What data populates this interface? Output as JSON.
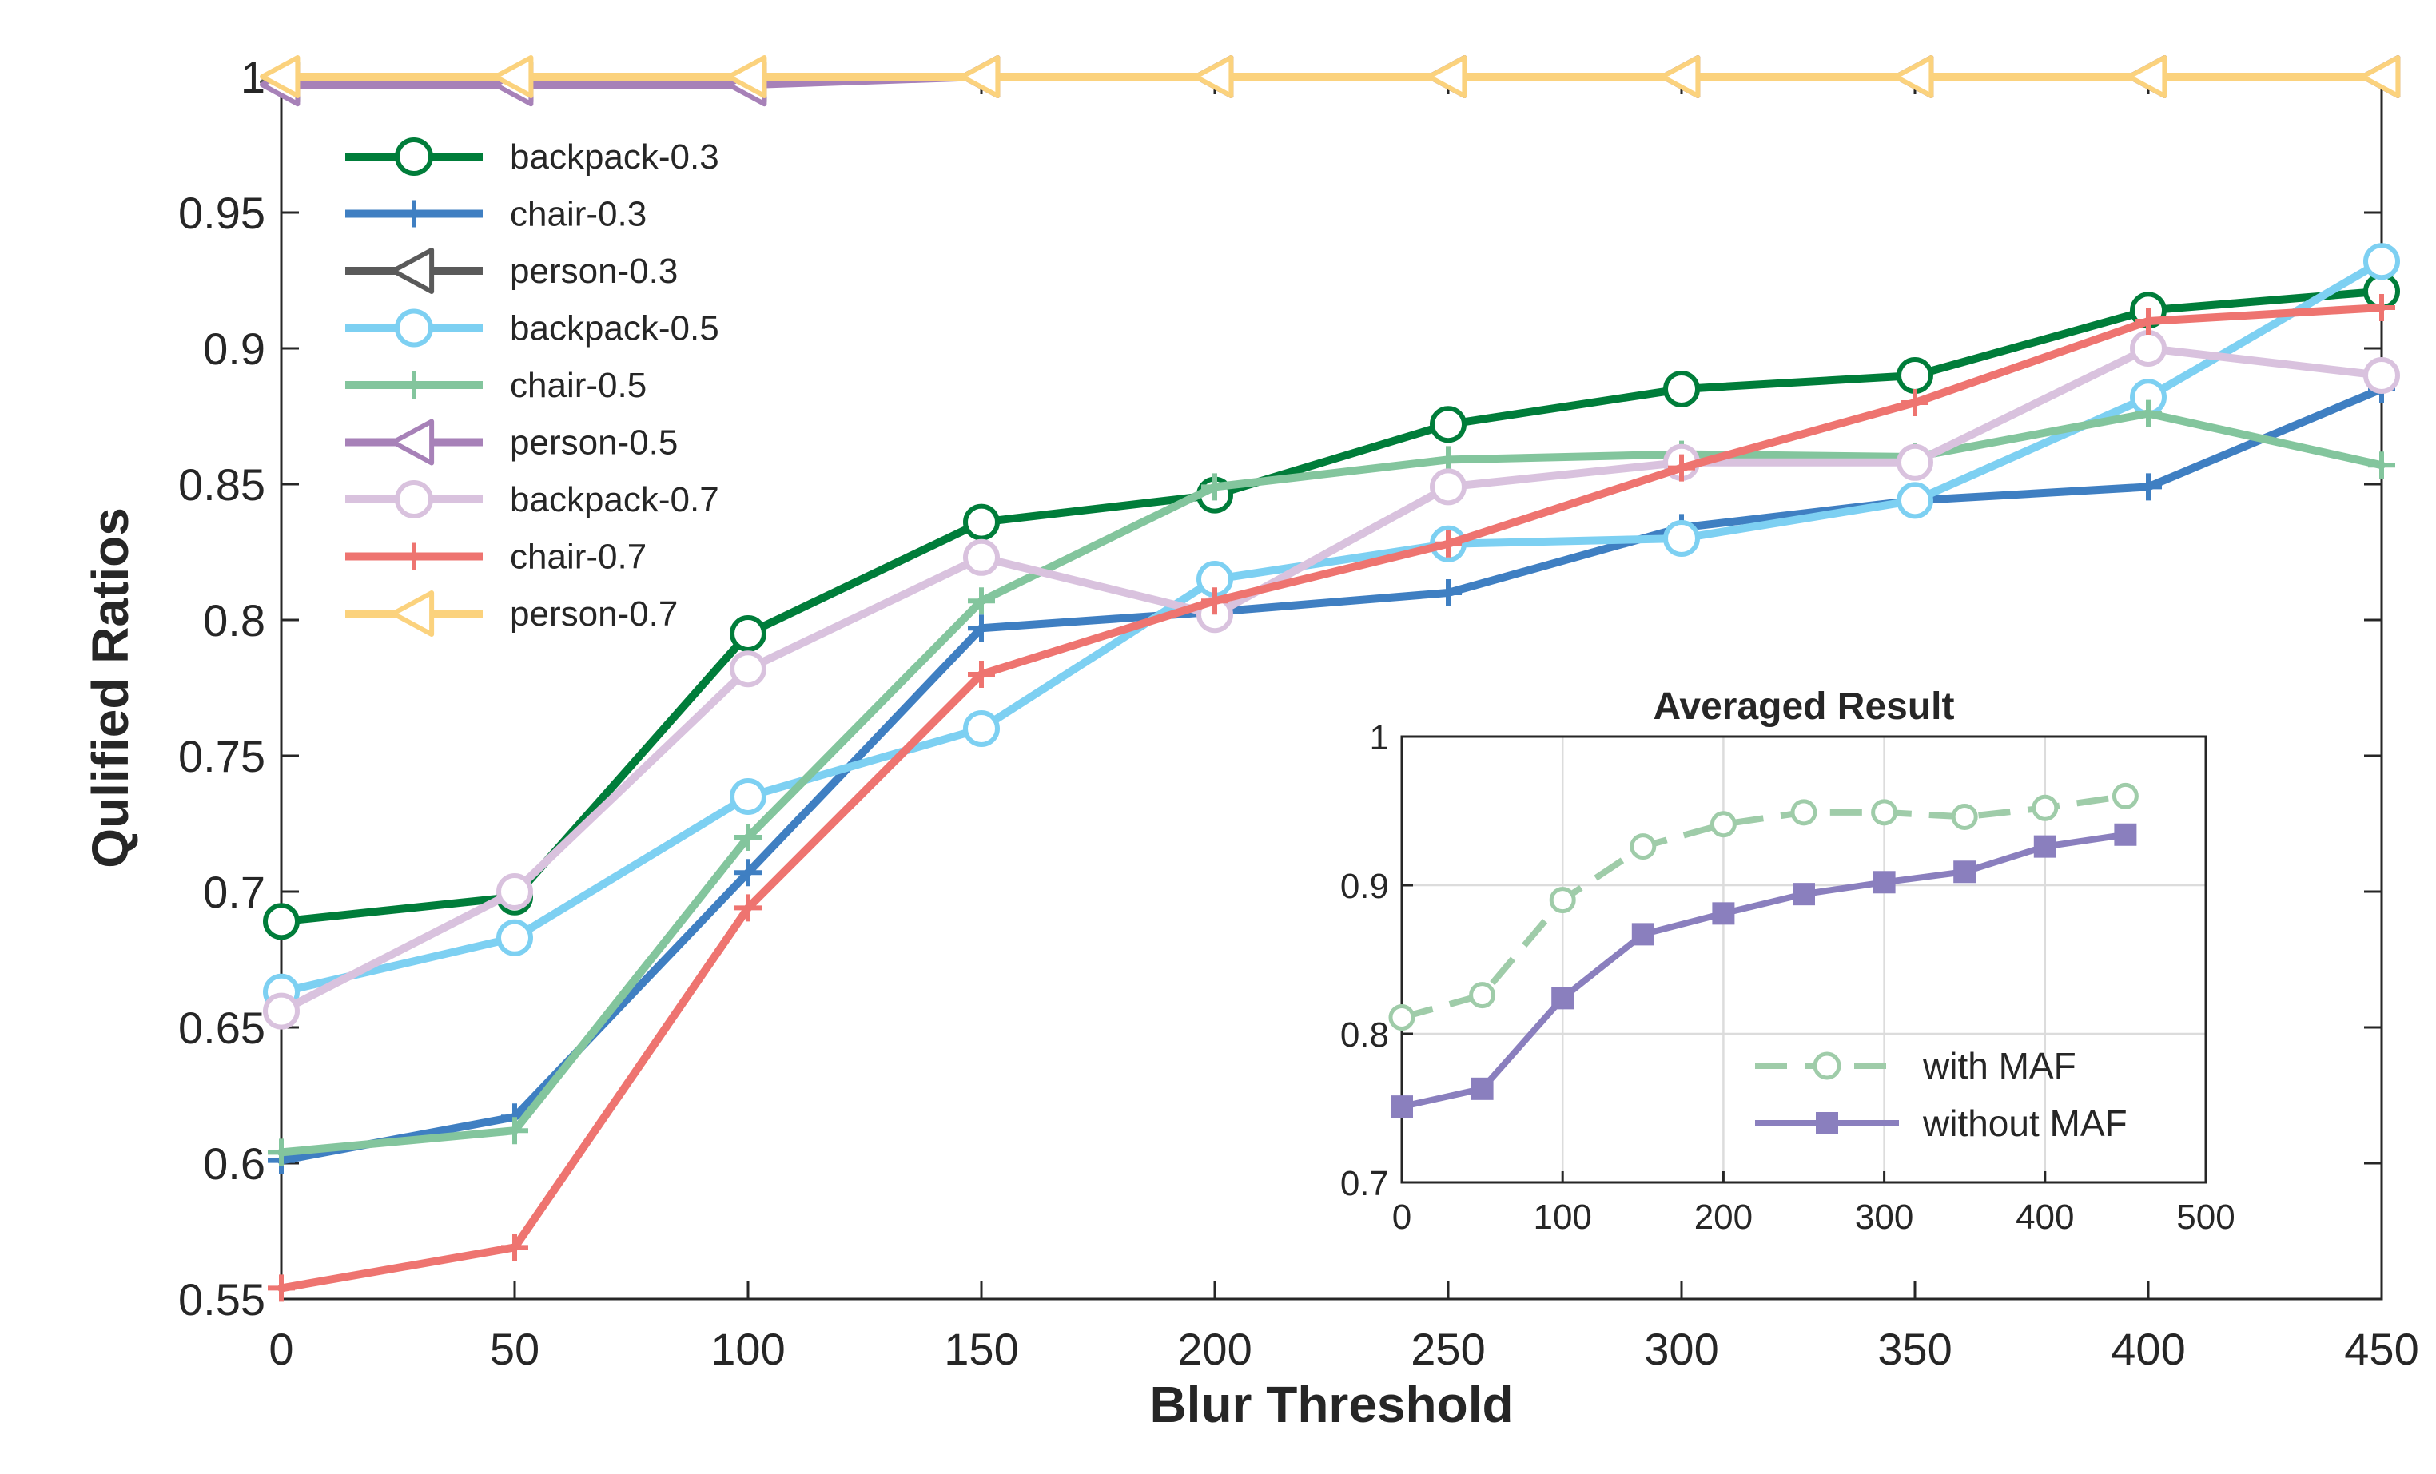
{
  "chart_data": [
    {
      "type": "line",
      "xlabel": "Blur Threshold",
      "ylabel": "Qulified Ratios",
      "xlim": [
        0,
        450
      ],
      "ylim": [
        0.55,
        1
      ],
      "xticks": [
        "0",
        "50",
        "100",
        "150",
        "200",
        "250",
        "300",
        "350",
        "400",
        "450"
      ],
      "yticks": [
        "0.55",
        "0.6",
        "0.65",
        "0.7",
        "0.75",
        "0.8",
        "0.85",
        "0.9",
        "0.95",
        "1"
      ],
      "grid": false,
      "legend_position": "top-left",
      "x": [
        0,
        50,
        100,
        150,
        200,
        250,
        300,
        350,
        400,
        450
      ],
      "series": [
        {
          "name": "backpack-0.3",
          "color": "#007d3a",
          "marker": "circle",
          "values": [
            0.689,
            0.698,
            0.795,
            0.836,
            0.846,
            0.872,
            0.885,
            0.89,
            0.914,
            0.921
          ]
        },
        {
          "name": "chair-0.3",
          "color": "#3f7fc2",
          "marker": "plus",
          "values": [
            0.601,
            0.617,
            0.707,
            0.797,
            0.803,
            0.81,
            0.834,
            0.844,
            0.849,
            0.885
          ]
        },
        {
          "name": "person-0.3",
          "color": "#5a5a5a",
          "marker": "triangle-left",
          "values": [
            0.998,
            0.998,
            0.998,
            1.0,
            1.0,
            1.0,
            1.0,
            1.0,
            1.0,
            1.0
          ]
        },
        {
          "name": "backpack-0.5",
          "color": "#7dd0f2",
          "marker": "circle",
          "values": [
            0.663,
            0.683,
            0.735,
            0.76,
            0.815,
            0.828,
            0.83,
            0.844,
            0.882,
            0.932
          ]
        },
        {
          "name": "chair-0.5",
          "color": "#83c59d",
          "marker": "plus",
          "values": [
            0.604,
            0.612,
            0.72,
            0.807,
            0.849,
            0.859,
            0.861,
            0.86,
            0.876,
            0.857
          ]
        },
        {
          "name": "person-0.5",
          "color": "#a781b8",
          "marker": "triangle-left",
          "values": [
            0.997,
            0.997,
            0.997,
            1.0,
            1.0,
            1.0,
            1.0,
            1.0,
            1.0,
            1.0
          ]
        },
        {
          "name": "backpack-0.7",
          "color": "#d9c2de",
          "marker": "circle",
          "values": [
            0.656,
            0.7,
            0.782,
            0.823,
            0.802,
            0.849,
            0.858,
            0.858,
            0.9,
            0.89
          ]
        },
        {
          "name": "chair-0.7",
          "color": "#ee7470",
          "marker": "plus",
          "values": [
            0.554,
            0.569,
            0.694,
            0.78,
            0.807,
            0.828,
            0.856,
            0.88,
            0.91,
            0.915
          ]
        },
        {
          "name": "person-0.7",
          "color": "#fbd27d",
          "marker": "triangle-left",
          "values": [
            1.0,
            1.0,
            1.0,
            1.0,
            1.0,
            1.0,
            1.0,
            1.0,
            1.0,
            1.0
          ]
        }
      ]
    },
    {
      "type": "line",
      "title": "Averaged Result",
      "xlim": [
        0,
        500
      ],
      "ylim": [
        0.7,
        1
      ],
      "xticks": [
        "0",
        "100",
        "200",
        "300",
        "400",
        "500"
      ],
      "yticks": [
        "0.7",
        "0.8",
        "0.9",
        "1"
      ],
      "grid": true,
      "legend_position": "bottom-right",
      "x": [
        0,
        50,
        100,
        150,
        200,
        250,
        300,
        350,
        400,
        450
      ],
      "series": [
        {
          "name": "with MAF",
          "color": "#9fcca9",
          "marker": "circle",
          "dashed": true,
          "values": [
            0.811,
            0.826,
            0.89,
            0.926,
            0.941,
            0.949,
            0.949,
            0.946,
            0.952,
            0.96
          ]
        },
        {
          "name": "without MAF",
          "color": "#8a7fbe",
          "marker": "square",
          "dashed": false,
          "values": [
            0.751,
            0.763,
            0.824,
            0.867,
            0.881,
            0.894,
            0.902,
            0.909,
            0.926,
            0.934
          ]
        }
      ]
    }
  ]
}
